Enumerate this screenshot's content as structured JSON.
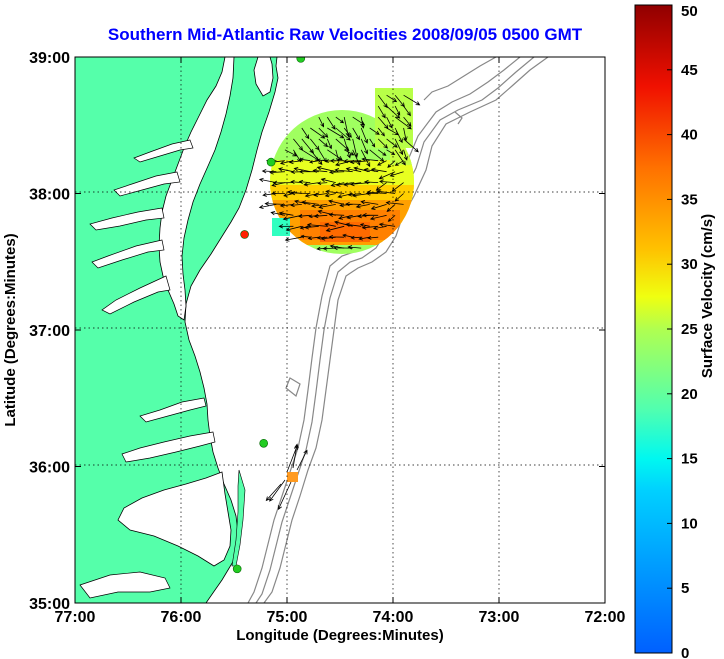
{
  "chart_data": {
    "type": "vector-map",
    "title": "Southern Mid-Atlantic Raw Velocities 2008/09/05 0500 GMT",
    "xlabel": "Longitude (Degrees:Minutes)",
    "ylabel": "Latitude (Degrees:Minutes)",
    "colorbar_label": "Surface Velocity (cm/s)",
    "x_ticks": [
      "77:00",
      "76:00",
      "75:00",
      "74:00",
      "73:00",
      "72:00"
    ],
    "y_ticks": [
      "39:00",
      "38:00",
      "37:00",
      "36:00",
      "35:00"
    ],
    "colorbar_ticks": [
      "0",
      "5",
      "10",
      "15",
      "20",
      "25",
      "30",
      "35",
      "40",
      "45",
      "50"
    ],
    "xlim": [
      -77,
      -72
    ],
    "ylim": [
      35,
      39
    ],
    "clim": [
      0,
      50
    ],
    "grid": "dotted",
    "colors": {
      "title": "#0000ff",
      "land": "#55ffaa",
      "vector": "#000000",
      "isobath": "#888888"
    },
    "stations": [
      {
        "lon": -74.87,
        "lat": 38.99,
        "color": "#22cc22"
      },
      {
        "lon": -75.15,
        "lat": 38.23,
        "color": "#22cc22"
      },
      {
        "lon": -75.4,
        "lat": 37.7,
        "color": "#ff2200"
      },
      {
        "lon": -75.22,
        "lat": 36.17,
        "color": "#22cc22"
      },
      {
        "lon": -75.47,
        "lat": 35.25,
        "color": "#22cc22"
      }
    ],
    "north_patch": {
      "lon_min": -75.1,
      "lon_max": -73.85,
      "lat_min": 37.6,
      "lat_max": 38.8
    },
    "south_patch": {
      "lon_min": -75.0,
      "lon_max": -74.9,
      "lat_min": 35.89,
      "lat_max": 35.96,
      "speed": 32
    }
  }
}
